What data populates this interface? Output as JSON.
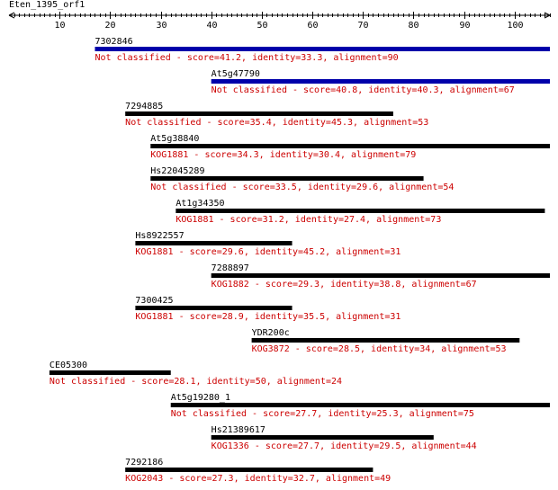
{
  "query": {
    "name": "Eten_1395_orf1",
    "length": 107
  },
  "axis": {
    "ticks": [
      10,
      20,
      30,
      40,
      50,
      60,
      70,
      80,
      90,
      100
    ]
  },
  "colors": {
    "classified_bar": "#0000aa",
    "bar": "#000000",
    "description": "#cc0000",
    "axis": "#000000"
  },
  "hits": [
    {
      "name": "7302846",
      "start": 17,
      "end": 107,
      "kog": "Not classified",
      "score": "41.2",
      "identity": "33.3",
      "alignment": "90",
      "color": "#0000aa"
    },
    {
      "name": "At5g47790",
      "start": 40,
      "end": 107,
      "kog": "Not classified",
      "score": "40.8",
      "identity": "40.3",
      "alignment": "67",
      "color": "#0000aa"
    },
    {
      "name": "7294885",
      "start": 23,
      "end": 76,
      "kog": "Not classified",
      "score": "35.4",
      "identity": "45.3",
      "alignment": "53",
      "color": "#000000"
    },
    {
      "name": "At5g38840",
      "start": 28,
      "end": 107,
      "kog": "KOG1881",
      "score": "34.3",
      "identity": "30.4",
      "alignment": "79",
      "color": "#000000"
    },
    {
      "name": "Hs22045289",
      "start": 28,
      "end": 82,
      "kog": "Not classified",
      "score": "33.5",
      "identity": "29.6",
      "alignment": "54",
      "color": "#000000"
    },
    {
      "name": "At1g34350",
      "start": 33,
      "end": 106,
      "kog": "KOG1881",
      "score": "31.2",
      "identity": "27.4",
      "alignment": "73",
      "color": "#000000"
    },
    {
      "name": "Hs8922557",
      "start": 25,
      "end": 56,
      "kog": "KOG1881",
      "score": "29.6",
      "identity": "45.2",
      "alignment": "31",
      "color": "#000000"
    },
    {
      "name": "7288897",
      "start": 40,
      "end": 107,
      "kog": "KOG1882",
      "score": "29.3",
      "identity": "38.8",
      "alignment": "67",
      "color": "#000000"
    },
    {
      "name": "7300425",
      "start": 25,
      "end": 56,
      "kog": "KOG1881",
      "score": "28.9",
      "identity": "35.5",
      "alignment": "31",
      "color": "#000000"
    },
    {
      "name": "YDR200c",
      "start": 48,
      "end": 101,
      "kog": "KOG3872",
      "score": "28.5",
      "identity": "34",
      "alignment": "53",
      "color": "#000000"
    },
    {
      "name": "CE05300",
      "start": 8,
      "end": 32,
      "kog": "Not classified",
      "score": "28.1",
      "identity": "50",
      "alignment": "24",
      "color": "#000000"
    },
    {
      "name": "At5g19280_1",
      "start": 32,
      "end": 107,
      "kog": "Not classified",
      "score": "27.7",
      "identity": "25.3",
      "alignment": "75",
      "color": "#000000"
    },
    {
      "name": "Hs21389617",
      "start": 40,
      "end": 84,
      "kog": "KOG1336",
      "score": "27.7",
      "identity": "29.5",
      "alignment": "44",
      "color": "#000000"
    },
    {
      "name": "7292186",
      "start": 23,
      "end": 72,
      "kog": "KOG2043",
      "score": "27.3",
      "identity": "32.7",
      "alignment": "49",
      "color": "#000000"
    }
  ]
}
